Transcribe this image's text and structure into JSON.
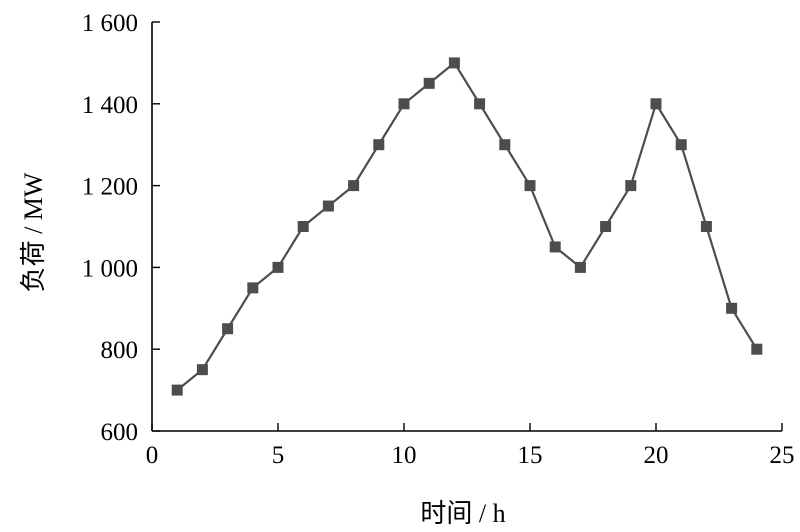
{
  "chart_data": {
    "type": "line",
    "xlabel": "时间 / h",
    "ylabel": "负荷 / MW",
    "xlim": [
      0,
      25
    ],
    "ylim": [
      600,
      1600
    ],
    "x_ticks": [
      0,
      5,
      10,
      15,
      20,
      25
    ],
    "x_tick_labels": [
      "0",
      "5",
      "10",
      "15",
      "20",
      "25"
    ],
    "y_ticks": [
      600,
      800,
      1000,
      1200,
      1400,
      1600
    ],
    "y_tick_labels": [
      "600",
      "800",
      "1 000",
      "1 200",
      "1 400",
      "1 600"
    ],
    "grid": false,
    "legend": "none",
    "colors": {
      "series": "#4d4d4d",
      "axes": "#000000"
    },
    "marker": "square",
    "series": [
      {
        "x": [
          1,
          2,
          3,
          4,
          5,
          6,
          7,
          8,
          9,
          10,
          11,
          12,
          13,
          14,
          15,
          16,
          17,
          18,
          19,
          20,
          21,
          22,
          23,
          24
        ],
        "values": [
          700,
          750,
          850,
          950,
          1000,
          1100,
          1150,
          1200,
          1300,
          1400,
          1450,
          1500,
          1400,
          1300,
          1200,
          1050,
          1000,
          1100,
          1200,
          1400,
          1300,
          1100,
          900,
          800
        ]
      }
    ]
  }
}
